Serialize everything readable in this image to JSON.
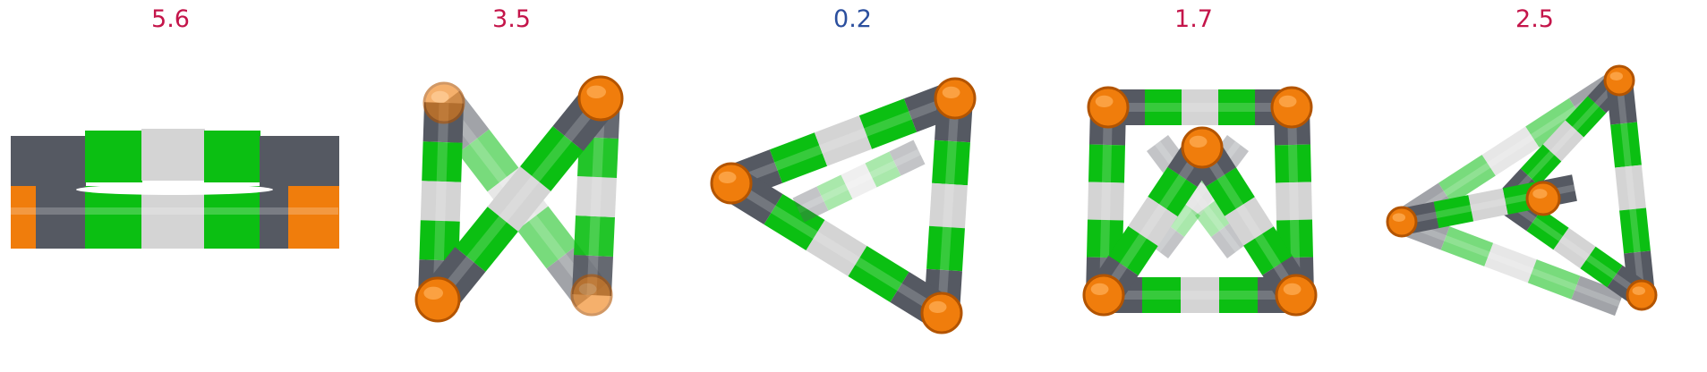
{
  "panels": [
    {
      "label": "5.6",
      "label_color": "#c4154a",
      "shape": "ring-edge-on"
    },
    {
      "label": "3.5",
      "label_color": "#c4154a",
      "shape": "twisted-loop"
    },
    {
      "label": "0.2",
      "label_color": "#2b4f9e",
      "shape": "triangle"
    },
    {
      "label": "1.7",
      "label_color": "#c4154a",
      "shape": "square-cage"
    },
    {
      "label": "2.5",
      "label_color": "#c4154a",
      "shape": "tetrahedron"
    }
  ],
  "colors": {
    "tube_dark": "#555962",
    "tube_green": "#0bbf12",
    "tube_silver": "#d4d4d4",
    "node_orange": "#f07d0c",
    "node_dark_orange": "#b35400"
  }
}
